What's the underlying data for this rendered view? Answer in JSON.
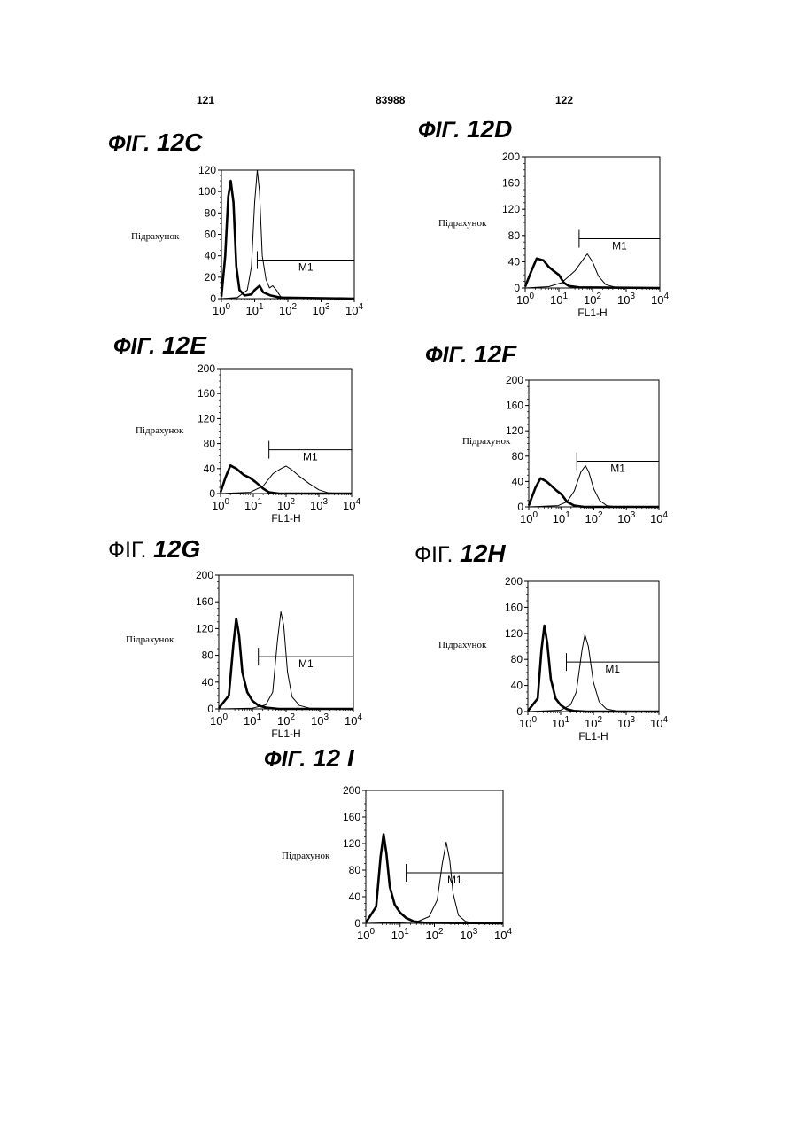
{
  "header": {
    "left_page": "121",
    "center_number": "83988",
    "right_page": "122"
  },
  "chart_data": [
    {
      "id": "12C",
      "title_prefix": "ФIГ.",
      "title_number": "12C",
      "type": "line",
      "ylabel": "Підрахунок",
      "xlabel": "",
      "x_scale": "log",
      "xlim": [
        1,
        10000
      ],
      "ylim": [
        0,
        120
      ],
      "yticks": [
        0,
        20,
        40,
        60,
        80,
        100,
        120
      ],
      "marker": {
        "label": "M1",
        "x_start": 12,
        "x_end": 10000,
        "y": 36
      },
      "series": [
        {
          "style": "bold",
          "points": [
            [
              1,
              2
            ],
            [
              1.3,
              40
            ],
            [
              1.6,
              95
            ],
            [
              1.9,
              110
            ],
            [
              2.3,
              90
            ],
            [
              2.8,
              30
            ],
            [
              3.5,
              8
            ],
            [
              5,
              3
            ],
            [
              8,
              4
            ],
            [
              10,
              8
            ],
            [
              14,
              12
            ],
            [
              18,
              6
            ],
            [
              30,
              3
            ],
            [
              60,
              1
            ],
            [
              10000,
              0
            ]
          ]
        },
        {
          "style": "thin",
          "points": [
            [
              1,
              0
            ],
            [
              3,
              1
            ],
            [
              6,
              8
            ],
            [
              8,
              30
            ],
            [
              10,
              90
            ],
            [
              12,
              120
            ],
            [
              14,
              100
            ],
            [
              17,
              40
            ],
            [
              22,
              18
            ],
            [
              28,
              10
            ],
            [
              35,
              12
            ],
            [
              45,
              8
            ],
            [
              60,
              2
            ],
            [
              100,
              0
            ],
            [
              10000,
              0
            ]
          ]
        }
      ]
    },
    {
      "id": "12D",
      "title_prefix": "ФIГ.",
      "title_number": "12D",
      "type": "line",
      "ylabel": "Підрахунок",
      "xlabel": "FL1-H",
      "x_scale": "log",
      "xlim": [
        1,
        10000
      ],
      "ylim": [
        0,
        200
      ],
      "yticks": [
        0,
        40,
        80,
        120,
        160,
        200
      ],
      "marker": {
        "label": "M1",
        "x_start": 40,
        "x_end": 10000,
        "y": 75
      },
      "series": [
        {
          "style": "bold",
          "points": [
            [
              1,
              2
            ],
            [
              1.5,
              25
            ],
            [
              2.2,
              45
            ],
            [
              3.5,
              42
            ],
            [
              5,
              32
            ],
            [
              7,
              26
            ],
            [
              10,
              20
            ],
            [
              14,
              8
            ],
            [
              20,
              3
            ],
            [
              40,
              1
            ],
            [
              10000,
              0
            ]
          ]
        },
        {
          "style": "thin",
          "points": [
            [
              1,
              0
            ],
            [
              5,
              2
            ],
            [
              12,
              8
            ],
            [
              20,
              18
            ],
            [
              30,
              26
            ],
            [
              50,
              42
            ],
            [
              70,
              52
            ],
            [
              100,
              40
            ],
            [
              150,
              18
            ],
            [
              250,
              5
            ],
            [
              500,
              1
            ],
            [
              10000,
              0
            ]
          ]
        }
      ]
    },
    {
      "id": "12E",
      "title_prefix": "ФIГ.",
      "title_number": "12E",
      "type": "line",
      "ylabel": "Підрахунок",
      "xlabel": "FL1-H",
      "x_scale": "log",
      "xlim": [
        1,
        10000
      ],
      "ylim": [
        0,
        200
      ],
      "yticks": [
        0,
        40,
        80,
        120,
        160,
        200
      ],
      "marker": {
        "label": "M1",
        "x_start": 30,
        "x_end": 10000,
        "y": 70
      },
      "series": [
        {
          "style": "bold",
          "points": [
            [
              1,
              2
            ],
            [
              1.4,
              25
            ],
            [
              2,
              45
            ],
            [
              3,
              40
            ],
            [
              5,
              30
            ],
            [
              8,
              25
            ],
            [
              12,
              18
            ],
            [
              20,
              8
            ],
            [
              30,
              2
            ],
            [
              60,
              0
            ],
            [
              10000,
              0
            ]
          ]
        },
        {
          "style": "thin",
          "points": [
            [
              1,
              0
            ],
            [
              8,
              2
            ],
            [
              20,
              12
            ],
            [
              40,
              32
            ],
            [
              70,
              40
            ],
            [
              100,
              44
            ],
            [
              150,
              38
            ],
            [
              250,
              28
            ],
            [
              500,
              16
            ],
            [
              1000,
              6
            ],
            [
              2000,
              1
            ],
            [
              10000,
              0
            ]
          ]
        }
      ]
    },
    {
      "id": "12F",
      "title_prefix": "ФIГ.",
      "title_number": "12F",
      "type": "line",
      "ylabel": "Підрахунок",
      "xlabel": "",
      "x_scale": "log",
      "xlim": [
        1,
        10000
      ],
      "ylim": [
        0,
        200
      ],
      "yticks": [
        0,
        40,
        80,
        120,
        160,
        200
      ],
      "marker": {
        "label": "M1",
        "x_start": 30,
        "x_end": 10000,
        "y": 72
      },
      "series": [
        {
          "style": "bold",
          "points": [
            [
              1,
              2
            ],
            [
              1.6,
              30
            ],
            [
              2.3,
              45
            ],
            [
              3.5,
              40
            ],
            [
              5,
              33
            ],
            [
              7,
              26
            ],
            [
              10,
              20
            ],
            [
              15,
              8
            ],
            [
              25,
              2
            ],
            [
              50,
              0
            ],
            [
              10000,
              0
            ]
          ]
        },
        {
          "style": "thin",
          "points": [
            [
              1,
              0
            ],
            [
              8,
              2
            ],
            [
              15,
              8
            ],
            [
              25,
              25
            ],
            [
              40,
              55
            ],
            [
              55,
              65
            ],
            [
              70,
              55
            ],
            [
              100,
              28
            ],
            [
              150,
              10
            ],
            [
              250,
              2
            ],
            [
              500,
              0
            ],
            [
              10000,
              0
            ]
          ]
        }
      ]
    },
    {
      "id": "12G",
      "title_prefix": "ФIГ.",
      "title_number": "12G",
      "type": "line",
      "ylabel": "Підрахунок",
      "xlabel": "FL1-H",
      "x_scale": "log",
      "xlim": [
        1,
        10000
      ],
      "ylim": [
        0,
        200
      ],
      "yticks": [
        0,
        40,
        80,
        120,
        160,
        200
      ],
      "marker": {
        "label": "M1",
        "x_start": 15,
        "x_end": 10000,
        "y": 78
      },
      "series": [
        {
          "style": "bold",
          "points": [
            [
              1,
              1
            ],
            [
              2,
              20
            ],
            [
              2.7,
              95
            ],
            [
              3.3,
              135
            ],
            [
              4,
              110
            ],
            [
              5,
              55
            ],
            [
              7,
              25
            ],
            [
              10,
              12
            ],
            [
              15,
              5
            ],
            [
              25,
              2
            ],
            [
              60,
              0
            ],
            [
              10000,
              0
            ]
          ]
        },
        {
          "style": "thin",
          "points": [
            [
              1,
              0
            ],
            [
              10,
              1
            ],
            [
              25,
              6
            ],
            [
              40,
              25
            ],
            [
              55,
              100
            ],
            [
              70,
              145
            ],
            [
              85,
              125
            ],
            [
              110,
              55
            ],
            [
              150,
              18
            ],
            [
              250,
              5
            ],
            [
              500,
              1
            ],
            [
              10000,
              0
            ]
          ]
        }
      ]
    },
    {
      "id": "12H",
      "title_prefix": "ФIГ.",
      "title_number": "12H",
      "type": "line",
      "ylabel": "Підрахунок",
      "xlabel": "FL1-H",
      "x_scale": "log",
      "xlim": [
        1,
        10000
      ],
      "ylim": [
        0,
        200
      ],
      "yticks": [
        0,
        40,
        80,
        120,
        160,
        200
      ],
      "marker": {
        "label": "M1",
        "x_start": 15,
        "x_end": 10000,
        "y": 76
      },
      "series": [
        {
          "style": "bold",
          "points": [
            [
              1,
              1
            ],
            [
              2,
              20
            ],
            [
              2.6,
              95
            ],
            [
              3.2,
              132
            ],
            [
              3.9,
              105
            ],
            [
              5,
              50
            ],
            [
              7,
              20
            ],
            [
              10,
              10
            ],
            [
              15,
              4
            ],
            [
              25,
              1
            ],
            [
              60,
              0
            ],
            [
              10000,
              0
            ]
          ]
        },
        {
          "style": "thin",
          "points": [
            [
              1,
              0
            ],
            [
              10,
              2
            ],
            [
              20,
              10
            ],
            [
              30,
              30
            ],
            [
              45,
              95
            ],
            [
              55,
              118
            ],
            [
              70,
              100
            ],
            [
              100,
              45
            ],
            [
              150,
              15
            ],
            [
              250,
              4
            ],
            [
              500,
              1
            ],
            [
              10000,
              0
            ]
          ]
        }
      ]
    },
    {
      "id": "12I",
      "title_prefix": "ФIГ.",
      "title_number": "12 I",
      "type": "line",
      "ylabel": "Підрахунок",
      "xlabel": "",
      "x_scale": "log",
      "xlim": [
        1,
        10000
      ],
      "ylim": [
        0,
        200
      ],
      "yticks": [
        0,
        40,
        80,
        120,
        160,
        200
      ],
      "marker": {
        "label": "M1",
        "x_start": 15,
        "x_end": 10000,
        "y": 76
      },
      "series": [
        {
          "style": "bold",
          "points": [
            [
              1,
              1
            ],
            [
              2,
              25
            ],
            [
              2.7,
              100
            ],
            [
              3.3,
              134
            ],
            [
              4,
              105
            ],
            [
              5,
              55
            ],
            [
              7,
              28
            ],
            [
              10,
              16
            ],
            [
              15,
              8
            ],
            [
              25,
              3
            ],
            [
              50,
              1
            ],
            [
              10000,
              0
            ]
          ]
        },
        {
          "style": "thin",
          "points": [
            [
              1,
              0
            ],
            [
              30,
              2
            ],
            [
              70,
              10
            ],
            [
              120,
              35
            ],
            [
              170,
              90
            ],
            [
              220,
              122
            ],
            [
              280,
              95
            ],
            [
              350,
              45
            ],
            [
              500,
              12
            ],
            [
              800,
              3
            ],
            [
              1500,
              0
            ],
            [
              10000,
              0
            ]
          ]
        }
      ]
    }
  ]
}
